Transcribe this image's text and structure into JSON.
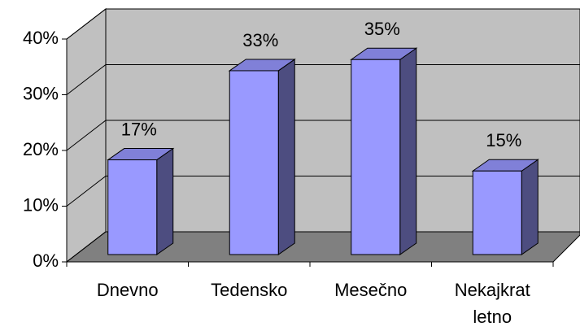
{
  "chart_data": {
    "type": "bar3d",
    "categories": [
      "Dnevno",
      "Tedensko",
      "Mesečno",
      "Nekajkrat letno"
    ],
    "values": [
      17,
      33,
      35,
      15
    ],
    "value_labels": [
      "17%",
      "33%",
      "35%",
      "15%"
    ],
    "color": "#9999ff",
    "ylim": [
      0,
      40
    ],
    "yticks": [
      {
        "value": 0,
        "label": "0%"
      },
      {
        "value": 10,
        "label": "10%"
      },
      {
        "value": 20,
        "label": "20%"
      },
      {
        "value": 30,
        "label": "30%"
      },
      {
        "value": 40,
        "label": "40%"
      }
    ],
    "grid": true
  }
}
